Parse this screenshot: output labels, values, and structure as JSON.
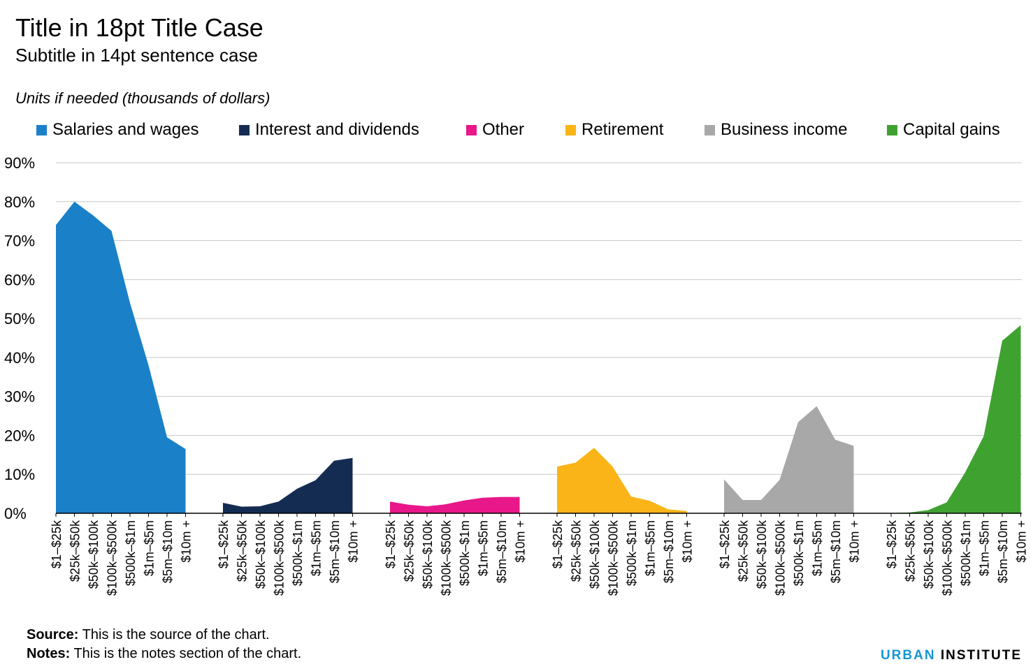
{
  "header": {
    "title": "Title in 18pt Title Case",
    "subtitle": "Subtitle in 14pt sentence case",
    "units": "Units if needed (thousands of dollars)"
  },
  "footer": {
    "source_label": "Source:",
    "source_text": "This is the source of the chart.",
    "notes_label": "Notes:",
    "notes_text": "This is the notes section of the chart.",
    "brand_part1": "URBAN",
    "brand_part2": "INSTITUTE"
  },
  "chart_data": {
    "type": "area",
    "title": "Title in 18pt Title Case",
    "subtitle": "Subtitle in 14pt sentence case",
    "ylabel": "Units if needed (thousands of dollars)",
    "ylim": [
      0,
      90
    ],
    "yticks": [
      0,
      10,
      20,
      30,
      40,
      50,
      60,
      70,
      80,
      90
    ],
    "ytick_labels": [
      "0%",
      "10%",
      "20%",
      "30%",
      "40%",
      "50%",
      "60%",
      "70%",
      "80%",
      "90%"
    ],
    "grid": true,
    "legend_position": "top",
    "categories": [
      "$1–$25k",
      "$25k–$50k",
      "$50k–$100k",
      "$100k–$500k",
      "$500k–$1m",
      "$1m–$5m",
      "$5m–$10m",
      "$10m +"
    ],
    "series": [
      {
        "name": "Salaries and wages",
        "color": "#1a80c8",
        "values": [
          74,
          80,
          76.5,
          72.5,
          54,
          38,
          19.5,
          16.5
        ]
      },
      {
        "name": "Interest and dividends",
        "color": "#152c52",
        "values": [
          2.7,
          1.7,
          1.8,
          3,
          6.3,
          8.5,
          13.5,
          14.2
        ]
      },
      {
        "name": "Other",
        "color": "#e8178a",
        "values": [
          3,
          2.2,
          1.8,
          2.3,
          3.3,
          4,
          4.2,
          4.2
        ]
      },
      {
        "name": "Retirement",
        "color": "#fab418",
        "values": [
          12,
          13,
          16.8,
          12,
          4.3,
          3.2,
          1,
          0.6
        ]
      },
      {
        "name": "Business income",
        "color": "#a8a8a8",
        "values": [
          8.7,
          3.4,
          3.4,
          8.6,
          23.4,
          27.5,
          18.9,
          17.3
        ]
      },
      {
        "name": "Capital gains",
        "color": "#3fa230",
        "values": [
          0.05,
          0.2,
          0.8,
          2.8,
          10.5,
          19.8,
          44.3,
          48.3
        ]
      }
    ]
  }
}
